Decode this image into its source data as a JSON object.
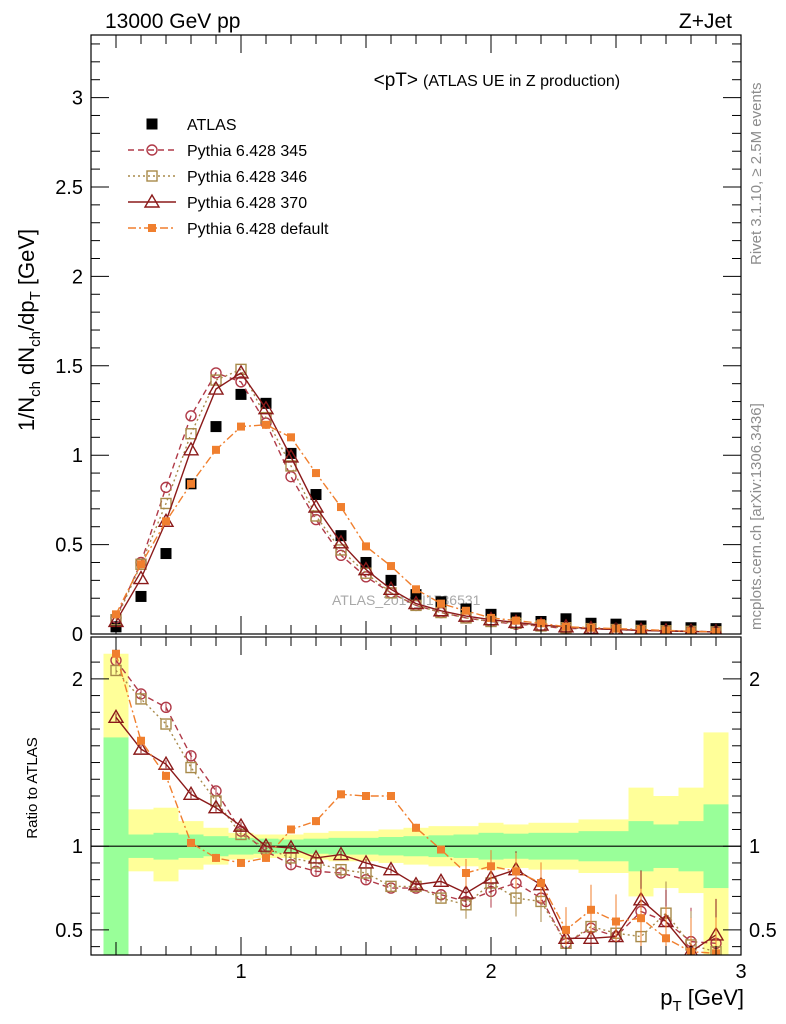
{
  "header": {
    "left": "13000 GeV pp",
    "right": "Z+Jet",
    "side_top": "Rivet 3.1.10, ≥ 2.5M events",
    "side_bottom": "mcplots.cern.ch [arXiv:1306.3436]",
    "watermark": "ATLAS_2014_I1736531"
  },
  "chart_data": [
    {
      "type": "scatter",
      "title": "<pT>",
      "subtitle": "(ATLAS UE in Z production)",
      "ylabel": "1/N_ch dN_ch/dp_T [GeV]",
      "xlabel": "p_T [GeV]",
      "xlim": [
        0.4,
        3.0
      ],
      "ylim": [
        0,
        3.35
      ],
      "x_ticks": [
        "1",
        "2",
        "3"
      ],
      "y_ticks": [
        "0",
        "0.5",
        "1",
        "1.5",
        "2",
        "2.5",
        "3"
      ],
      "legend_position": "top-left",
      "x": [
        0.5,
        0.6,
        0.7,
        0.8,
        0.9,
        1.0,
        1.1,
        1.2,
        1.3,
        1.4,
        1.5,
        1.6,
        1.7,
        1.8,
        1.9,
        2.0,
        2.1,
        2.2,
        2.3,
        2.4,
        2.5,
        2.6,
        2.7,
        2.8,
        2.9
      ],
      "series": [
        {
          "name": "ATLAS",
          "style": "data",
          "color": "#000000",
          "values": [
            0.04,
            0.21,
            0.45,
            0.84,
            1.16,
            1.34,
            1.29,
            1.01,
            0.78,
            0.55,
            0.4,
            0.3,
            0.22,
            0.18,
            0.14,
            0.11,
            0.09,
            0.07,
            0.085,
            0.06,
            0.055,
            0.045,
            0.04,
            0.035,
            0.03
          ]
        },
        {
          "name": "Pythia 6.428 345",
          "style": "circle-dash",
          "color": "#b03a48",
          "values": [
            0.09,
            0.4,
            0.82,
            1.22,
            1.46,
            1.41,
            1.18,
            0.88,
            0.64,
            0.44,
            0.32,
            0.23,
            0.16,
            0.12,
            0.09,
            0.07,
            0.055,
            0.045,
            0.03,
            0.03,
            0.025,
            0.02,
            0.018,
            0.015,
            0.013
          ]
        },
        {
          "name": "Pythia 6.428 346",
          "style": "square-dot",
          "color": "#a88a4a",
          "values": [
            0.08,
            0.39,
            0.73,
            1.12,
            1.42,
            1.48,
            1.21,
            0.94,
            0.66,
            0.47,
            0.34,
            0.23,
            0.16,
            0.12,
            0.09,
            0.07,
            0.06,
            0.045,
            0.035,
            0.03,
            0.025,
            0.02,
            0.018,
            0.015,
            0.012
          ]
        },
        {
          "name": "Pythia 6.428 370",
          "style": "triangle-solid",
          "color": "#8b1a1a",
          "values": [
            0.07,
            0.31,
            0.63,
            1.03,
            1.37,
            1.46,
            1.26,
            0.99,
            0.71,
            0.51,
            0.36,
            0.25,
            0.17,
            0.13,
            0.1,
            0.08,
            0.065,
            0.05,
            0.04,
            0.03,
            0.025,
            0.02,
            0.017,
            0.014,
            0.012
          ]
        },
        {
          "name": "Pythia 6.428 default",
          "style": "fsquare-dashdot",
          "color": "#f07f2e",
          "values": [
            0.11,
            0.39,
            0.63,
            0.84,
            1.03,
            1.16,
            1.17,
            1.1,
            0.9,
            0.71,
            0.49,
            0.38,
            0.25,
            0.17,
            0.13,
            0.09,
            0.075,
            0.06,
            0.04,
            0.035,
            0.03,
            0.025,
            0.02,
            0.015,
            0.012
          ]
        }
      ]
    },
    {
      "type": "scatter",
      "ylabel": "Ratio to ATLAS",
      "xlim": [
        0.4,
        3.0
      ],
      "ylim": [
        0.35,
        2.25
      ],
      "y_ticks": [
        "0.5",
        "1",
        "2"
      ],
      "reference_line": 1,
      "band_inner_color": "#99ff99",
      "band_outer_color": "#ffff99",
      "band_inner": [
        [
          0.35,
          1.65
        ],
        [
          0.93,
          1.07
        ],
        [
          0.92,
          1.08
        ],
        [
          0.93,
          1.07
        ],
        [
          0.94,
          1.06
        ],
        [
          0.95,
          1.05
        ],
        [
          0.955,
          1.045
        ],
        [
          0.96,
          1.04
        ],
        [
          0.955,
          1.045
        ],
        [
          0.95,
          1.05
        ],
        [
          0.95,
          1.05
        ],
        [
          0.945,
          1.055
        ],
        [
          0.94,
          1.06
        ],
        [
          0.935,
          1.065
        ],
        [
          0.93,
          1.07
        ],
        [
          0.92,
          1.08
        ],
        [
          0.925,
          1.075
        ],
        [
          0.92,
          1.08
        ],
        [
          0.92,
          1.08
        ],
        [
          0.91,
          1.09
        ],
        [
          0.91,
          1.09
        ],
        [
          0.85,
          1.15
        ],
        [
          0.87,
          1.13
        ],
        [
          0.85,
          1.15
        ],
        [
          0.75,
          1.25
        ]
      ],
      "band_outer": [
        [
          0.36,
          2.15
        ],
        [
          0.85,
          1.22
        ],
        [
          0.79,
          1.23
        ],
        [
          0.86,
          1.15
        ],
        [
          0.89,
          1.11
        ],
        [
          0.92,
          1.08
        ],
        [
          0.93,
          1.07
        ],
        [
          0.93,
          1.07
        ],
        [
          0.92,
          1.08
        ],
        [
          0.91,
          1.09
        ],
        [
          0.91,
          1.09
        ],
        [
          0.9,
          1.1
        ],
        [
          0.89,
          1.11
        ],
        [
          0.88,
          1.12
        ],
        [
          0.88,
          1.12
        ],
        [
          0.86,
          1.14
        ],
        [
          0.87,
          1.13
        ],
        [
          0.86,
          1.14
        ],
        [
          0.86,
          1.14
        ],
        [
          0.84,
          1.16
        ],
        [
          0.84,
          1.16
        ],
        [
          0.7,
          1.35
        ],
        [
          0.75,
          1.3
        ],
        [
          0.72,
          1.35
        ],
        [
          0.35,
          1.68
        ]
      ],
      "series": [
        {
          "name": "Pythia 6.428 345",
          "values": [
            2.11,
            1.91,
            1.83,
            1.54,
            1.33,
            1.09,
            0.97,
            0.89,
            0.85,
            0.84,
            0.8,
            0.75,
            0.75,
            0.71,
            0.67,
            0.73,
            0.78,
            0.69,
            0.42,
            0.51,
            0.46,
            0.61,
            0.55,
            0.43,
            0.42
          ]
        },
        {
          "name": "Pythia 6.428 346",
          "values": [
            2.05,
            1.88,
            1.73,
            1.47,
            1.27,
            1.07,
            0.99,
            0.93,
            0.9,
            0.86,
            0.84,
            0.76,
            0.76,
            0.69,
            0.65,
            0.78,
            0.69,
            0.67,
            0.42,
            0.52,
            0.48,
            0.46,
            0.6,
            0.41,
            0.37
          ]
        },
        {
          "name": "Pythia 6.428 370",
          "values": [
            1.77,
            1.58,
            1.49,
            1.31,
            1.23,
            1.12,
            1.0,
            0.99,
            0.93,
            0.95,
            0.9,
            0.86,
            0.77,
            0.79,
            0.72,
            0.81,
            0.86,
            0.77,
            0.45,
            0.45,
            0.46,
            0.68,
            0.55,
            0.37,
            0.47
          ]
        },
        {
          "name": "Pythia 6.428 default",
          "values": [
            2.15,
            1.63,
            1.42,
            1.02,
            0.93,
            0.9,
            0.93,
            1.1,
            1.15,
            1.31,
            1.3,
            1.3,
            1.11,
            0.98,
            0.84,
            0.88,
            0.85,
            0.78,
            0.5,
            0.62,
            0.55,
            0.57,
            0.45,
            0.37,
            0.36
          ]
        }
      ]
    }
  ]
}
